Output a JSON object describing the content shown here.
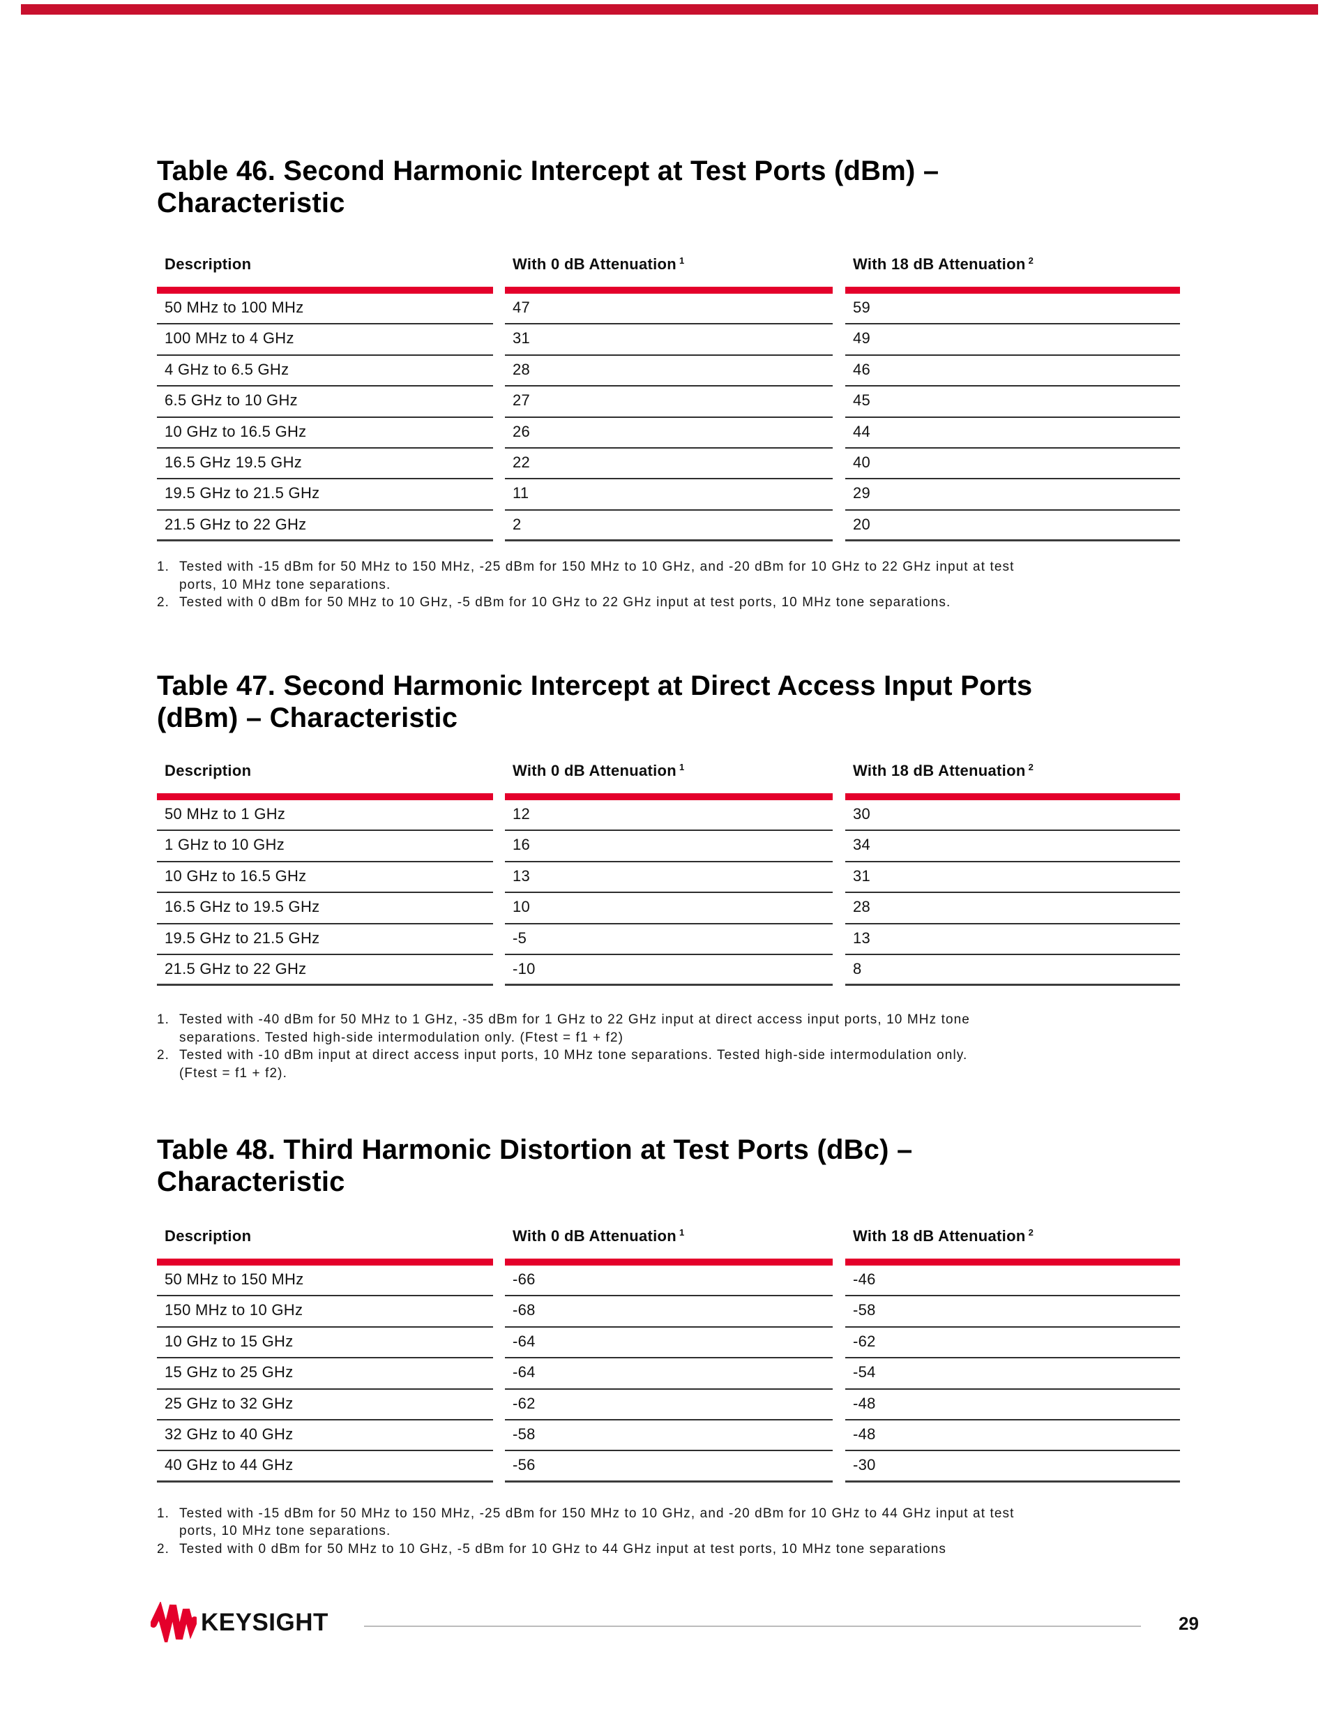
{
  "page": {
    "top_bar_color": "#C8102E",
    "accent_red": "#E4002B"
  },
  "tables": [
    {
      "name": "table-46",
      "title_lines": [
        "Table 46. Second Harmonic Intercept at Test Ports (dBm) –",
        "Characteristic"
      ],
      "columns": [
        {
          "label": "Description",
          "sup": ""
        },
        {
          "label": "With 0 dB Attenuation",
          "sup": "1"
        },
        {
          "label": "With 18 dB Attenuation",
          "sup": "2"
        }
      ],
      "rows": [
        [
          "50 MHz to 100 MHz",
          "47",
          "59"
        ],
        [
          "100 MHz to 4 GHz",
          "31",
          "49"
        ],
        [
          "4 GHz to 6.5 GHz",
          "28",
          "46"
        ],
        [
          "6.5 GHz to 10 GHz",
          "27",
          "45"
        ],
        [
          "10 GHz to 16.5 GHz",
          "26",
          "44"
        ],
        [
          "16.5 GHz 19.5 GHz",
          "22",
          "40"
        ],
        [
          "19.5 GHz to 21.5 GHz",
          "11",
          "29"
        ],
        [
          "21.5 GHz to 22 GHz",
          "2",
          "20"
        ]
      ],
      "footnotes": [
        {
          "num": "1.",
          "lines": [
            "Tested with -15 dBm for 50 MHz to 150 MHz, -25 dBm for 150 MHz to 10 GHz, and -20 dBm for 10 GHz to 22 GHz input at test",
            "ports, 10 MHz tone separations."
          ]
        },
        {
          "num": "2.",
          "lines": [
            "Tested with 0 dBm for 50 MHz to 10 GHz, -5 dBm for 10 GHz to 22 GHz input at test ports, 10 MHz tone separations."
          ]
        }
      ]
    },
    {
      "name": "table-47",
      "title_lines": [
        "Table 47. Second Harmonic Intercept at Direct Access Input Ports",
        "(dBm) – Characteristic"
      ],
      "columns": [
        {
          "label": "Description",
          "sup": ""
        },
        {
          "label": "With 0 dB Attenuation",
          "sup": "1"
        },
        {
          "label": "With 18 dB Attenuation",
          "sup": "2"
        }
      ],
      "rows": [
        [
          "50 MHz to 1 GHz",
          "12",
          "30"
        ],
        [
          "1 GHz to 10 GHz",
          "16",
          "34"
        ],
        [
          "10 GHz to 16.5 GHz",
          "13",
          "31"
        ],
        [
          "16.5 GHz to 19.5 GHz",
          "10",
          "28"
        ],
        [
          "19.5 GHz to 21.5 GHz",
          "-5",
          "13"
        ],
        [
          "21.5 GHz to 22 GHz",
          "-10",
          "8"
        ]
      ],
      "footnotes": [
        {
          "num": "1.",
          "lines": [
            "Tested with -40 dBm for 50 MHz to 1 GHz, -35 dBm for 1 GHz to 22 GHz input at direct access input ports, 10 MHz tone",
            "separations. Tested high-side intermodulation only. (Ftest = f1 + f2)"
          ]
        },
        {
          "num": "2.",
          "lines": [
            "Tested with -10 dBm input at direct access input ports, 10 MHz tone separations. Tested high-side intermodulation only.",
            "(Ftest = f1 + f2)."
          ]
        }
      ]
    },
    {
      "name": "table-48",
      "title_lines": [
        "Table 48. Third Harmonic Distortion at Test Ports (dBc) –",
        "Characteristic"
      ],
      "columns": [
        {
          "label": "Description",
          "sup": ""
        },
        {
          "label": "With 0 dB Attenuation",
          "sup": "1"
        },
        {
          "label": "With 18 dB Attenuation",
          "sup": "2"
        }
      ],
      "rows": [
        [
          "50 MHz to 150 MHz",
          "-66",
          "-46"
        ],
        [
          "150 MHz to 10 GHz",
          "-68",
          "-58"
        ],
        [
          "10 GHz to 15 GHz",
          "-64",
          "-62"
        ],
        [
          "15 GHz to 25 GHz",
          "-64",
          "-54"
        ],
        [
          "25 GHz to 32 GHz",
          "-62",
          "-48"
        ],
        [
          "32 GHz to 40 GHz",
          "-58",
          "-48"
        ],
        [
          "40 GHz to 44 GHz",
          "-56",
          "-30"
        ]
      ],
      "footnotes": [
        {
          "num": "1.",
          "lines": [
            "Tested with -15 dBm for 50 MHz to 150 MHz, -25 dBm for 150 MHz to 10 GHz, and -20 dBm for 10 GHz to 44 GHz input at test",
            "ports, 10 MHz tone separations."
          ]
        },
        {
          "num": "2.",
          "lines": [
            "Tested with 0 dBm for 50 MHz to 10 GHz, -5 dBm for 10 GHz to 44 GHz input at test ports, 10 MHz tone separations"
          ]
        }
      ]
    }
  ],
  "footer": {
    "logo_text": "KEYSIGHT",
    "page_number": "29"
  }
}
